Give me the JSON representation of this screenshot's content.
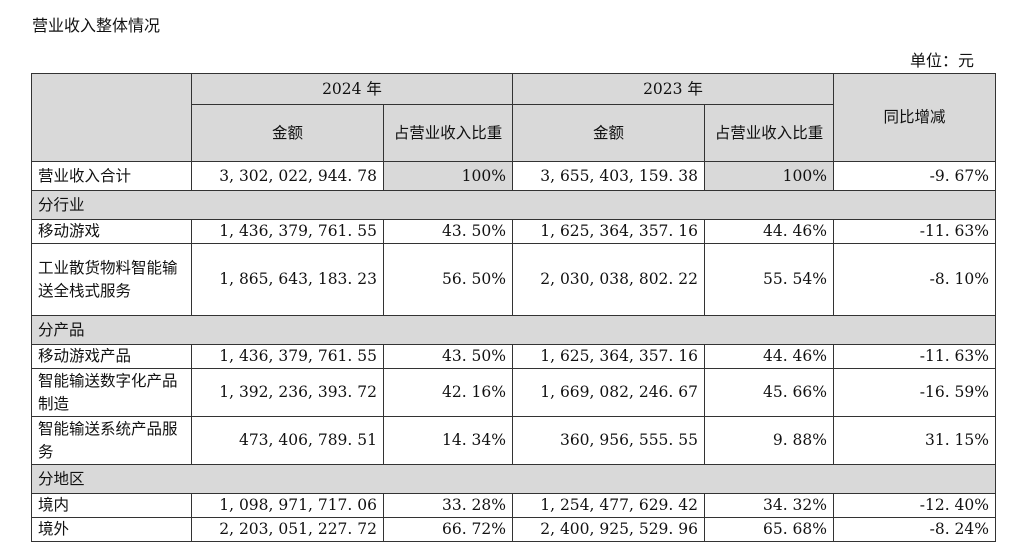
{
  "title": "营业收入整体情况",
  "unit": "单位：元",
  "headers": {
    "year_2024": "2024 年",
    "year_2023": "2023 年",
    "amount": "金额",
    "share": "占营业收入比重",
    "yoy": "同比增减"
  },
  "total": {
    "label": "营业收入合计",
    "amount_2024": "3, 302, 022, 944. 78",
    "share_2024": "100%",
    "amount_2023": "3, 655, 403, 159. 38",
    "share_2023": "100%",
    "yoy": "-9. 67%"
  },
  "sections": [
    {
      "title": "分行业",
      "rows": [
        {
          "label": "移动游戏",
          "amount_2024": "1, 436, 379, 761. 55",
          "share_2024": "43. 50%",
          "amount_2023": "1, 625, 364, 357. 16",
          "share_2023": "44. 46%",
          "yoy": "-11. 63%"
        },
        {
          "label": "工业散货物料智能输送全栈式服务",
          "amount_2024": "1, 865, 643, 183. 23",
          "share_2024": "56. 50%",
          "amount_2023": "2, 030, 038, 802. 22",
          "share_2023": "55. 54%",
          "yoy": "-8. 10%"
        }
      ]
    },
    {
      "title": "分产品",
      "rows": [
        {
          "label": "移动游戏产品",
          "amount_2024": "1, 436, 379, 761. 55",
          "share_2024": "43. 50%",
          "amount_2023": "1, 625, 364, 357. 16",
          "share_2023": "44. 46%",
          "yoy": "-11. 63%"
        },
        {
          "label": "智能输送数字化产品制造",
          "amount_2024": "1, 392, 236, 393. 72",
          "share_2024": "42. 16%",
          "amount_2023": "1, 669, 082, 246. 67",
          "share_2023": "45. 66%",
          "yoy": "-16. 59%"
        },
        {
          "label": "智能输送系统产品服务",
          "amount_2024": "473, 406, 789. 51",
          "share_2024": "14. 34%",
          "amount_2023": "360, 956, 555. 55",
          "share_2023": "9. 88%",
          "yoy": "31. 15%"
        }
      ]
    },
    {
      "title": "分地区",
      "rows": [
        {
          "label": "境内",
          "amount_2024": "1, 098, 971, 717. 06",
          "share_2024": "33. 28%",
          "amount_2023": "1, 254, 477, 629. 42",
          "share_2023": "34. 32%",
          "yoy": "-12. 40%"
        },
        {
          "label": "境外",
          "amount_2024": "2, 203, 051, 227. 72",
          "share_2024": "66. 72%",
          "amount_2023": "2, 400, 925, 529. 96",
          "share_2023": "65. 68%",
          "yoy": "-8. 24%"
        }
      ]
    }
  ]
}
